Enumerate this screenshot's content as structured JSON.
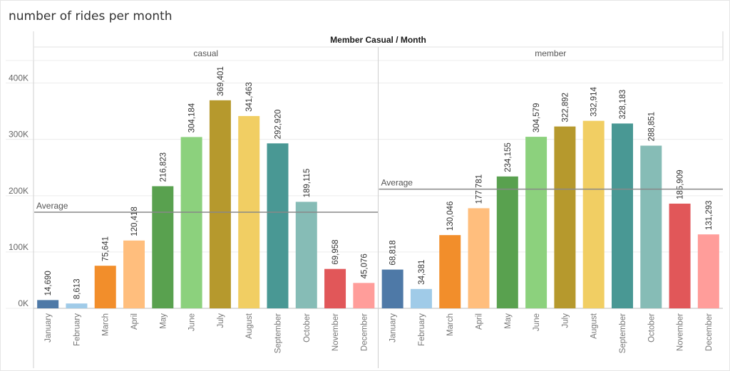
{
  "title": "number of rides per month",
  "chart_data": {
    "type": "bar",
    "column_header": "Member Casual  /  Month",
    "categories": [
      "January",
      "February",
      "March",
      "April",
      "May",
      "June",
      "July",
      "August",
      "September",
      "October",
      "November",
      "December"
    ],
    "colors": [
      "#4e79a7",
      "#a0cbe8",
      "#f28e2b",
      "#ffbe7d",
      "#59a14f",
      "#8cd17d",
      "#b6992d",
      "#f1ce63",
      "#499894",
      "#86bcb6",
      "#e15759",
      "#ff9d9a"
    ],
    "ylim": [
      0,
      440000
    ],
    "yticks": [
      0,
      100000,
      200000,
      300000,
      400000
    ],
    "ytick_labels": [
      "0K",
      "100K",
      "200K",
      "300K",
      "400K"
    ],
    "reference_line_label": "Average",
    "grid": true,
    "panels": [
      {
        "name": "casual",
        "values": [
          14690,
          8613,
          75641,
          120418,
          216823,
          304184,
          369401,
          341463,
          292920,
          189115,
          69958,
          45076
        ],
        "labels": [
          "14,690",
          "8,613",
          "75,641",
          "120,418",
          "216,823",
          "304,184",
          "369,401",
          "341,463",
          "292,920",
          "189,115",
          "69,958",
          "45,076"
        ],
        "average": 170692
      },
      {
        "name": "member",
        "values": [
          68818,
          34381,
          130046,
          177781,
          234155,
          304579,
          322892,
          332914,
          328183,
          288851,
          185909,
          131293
        ],
        "labels": [
          "68,818",
          "34,381",
          "130,046",
          "177,781",
          "234,155",
          "304,579",
          "322,892",
          "332,914",
          "328,183",
          "288,851",
          "185,909",
          "131,293"
        ],
        "average": 211650
      }
    ]
  }
}
